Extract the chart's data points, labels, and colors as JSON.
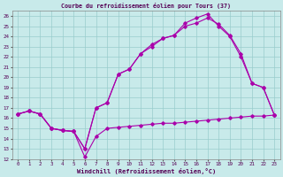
{
  "title": "Courbe du refroidissement éolien pour Tours (37)",
  "xlabel": "Windchill (Refroidissement éolien,°C)",
  "xlim": [
    -0.5,
    23.5
  ],
  "ylim": [
    12,
    26.5
  ],
  "xticks": [
    0,
    1,
    2,
    3,
    4,
    5,
    6,
    7,
    8,
    9,
    10,
    11,
    12,
    13,
    14,
    15,
    16,
    17,
    18,
    19,
    20,
    21,
    22,
    23
  ],
  "yticks": [
    12,
    13,
    14,
    15,
    16,
    17,
    18,
    19,
    20,
    21,
    22,
    23,
    24,
    25,
    26
  ],
  "bg_color": "#c8eaea",
  "line_color": "#aa00aa",
  "grid_color": "#99cccc",
  "line1_x": [
    0,
    1,
    2,
    3,
    4,
    5,
    6,
    7,
    8,
    9,
    10,
    11,
    12,
    13,
    14,
    15,
    16,
    17,
    18,
    19,
    20,
    21,
    22,
    23
  ],
  "line1_y": [
    16.4,
    16.7,
    16.4,
    15.0,
    14.8,
    14.7,
    12.2,
    14.2,
    15.0,
    15.1,
    15.2,
    15.3,
    15.4,
    15.5,
    15.5,
    15.6,
    15.7,
    15.8,
    15.9,
    16.0,
    16.1,
    16.2,
    16.2,
    16.3
  ],
  "line2_x": [
    0,
    1,
    2,
    3,
    4,
    5,
    6,
    7,
    8,
    9,
    10,
    11,
    12,
    13,
    14,
    15,
    16,
    17,
    18,
    19,
    20,
    21,
    22,
    23
  ],
  "line2_y": [
    16.4,
    16.7,
    16.4,
    15.0,
    14.8,
    14.7,
    13.0,
    17.0,
    17.5,
    20.3,
    20.8,
    22.3,
    23.0,
    23.8,
    24.1,
    25.0,
    25.3,
    25.8,
    25.2,
    24.1,
    22.3,
    19.4,
    19.0,
    16.3
  ],
  "line3_x": [
    0,
    1,
    2,
    3,
    4,
    5,
    6,
    7,
    8,
    9,
    10,
    11,
    12,
    13,
    14,
    15,
    16,
    17,
    18,
    19,
    20,
    21,
    22,
    23
  ],
  "line3_y": [
    16.4,
    16.7,
    16.4,
    15.0,
    14.8,
    14.7,
    13.0,
    17.0,
    17.5,
    20.3,
    20.8,
    22.3,
    23.2,
    23.8,
    24.1,
    25.3,
    25.8,
    26.2,
    25.0,
    24.0,
    22.0,
    19.4,
    19.0,
    16.3
  ]
}
